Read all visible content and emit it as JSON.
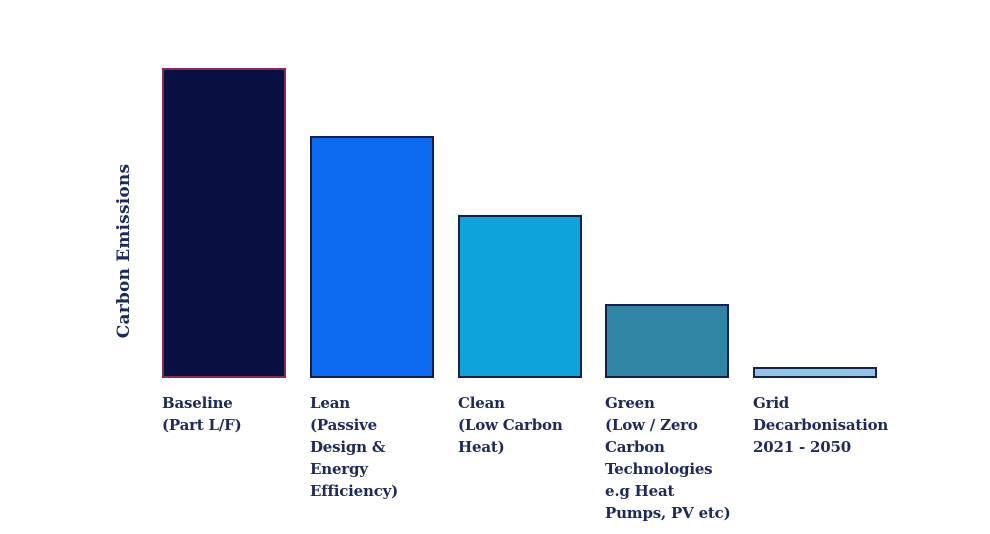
{
  "chart": {
    "y_axis_label": "Carbon Emissions",
    "text_color": "#1C2A5E",
    "background": "#FFFFFF",
    "bars": [
      {
        "id": "baseline",
        "label": "Baseline\n(Part L/F)",
        "value": 100,
        "fill": "#081041",
        "border": "#8B2A4A"
      },
      {
        "id": "lean",
        "label": "Lean\n(Passive\nDesign &\nEnergy\nEfficiency)",
        "value": 78,
        "fill": "#0B6AEF",
        "border": "#16204E"
      },
      {
        "id": "clean",
        "label": "Clean\n(Low Carbon\nHeat)",
        "value": 52.5,
        "fill": "#0FA3DB",
        "border": "#16204E"
      },
      {
        "id": "green",
        "label": "Green\n(Low / Zero\nCarbon\nTechnologies\ne.g Heat\nPumps, PV etc)",
        "value": 24,
        "fill": "#3085A4",
        "border": "#16204E"
      },
      {
        "id": "grid-decarbonisation",
        "label": "Grid\nDecarbonisation\n2021 - 2050",
        "value": 3.5,
        "fill": "#92C4E6",
        "border": "#16204E"
      }
    ]
  },
  "chart_data": {
    "type": "bar",
    "title": "",
    "xlabel": "",
    "ylabel": "Carbon Emissions",
    "categories": [
      "Baseline (Part L/F)",
      "Lean (Passive Design & Energy Efficiency)",
      "Clean (Low Carbon Heat)",
      "Green (Low / Zero Carbon Technologies e.g Heat Pumps, PV etc)",
      "Grid Decarbonisation 2021 - 2050"
    ],
    "values": [
      100,
      78,
      52.5,
      24,
      3.5
    ],
    "values_note": "No numeric y-axis shown; values estimated relative to Baseline = 100",
    "ylim": [
      0,
      100
    ],
    "grid": false,
    "legend": false,
    "bar_colors": [
      "#081041",
      "#0B6AEF",
      "#0FA3DB",
      "#3085A4",
      "#92C4E6"
    ],
    "bar_border_colors": [
      "#8B2A4A",
      "#16204E",
      "#16204E",
      "#16204E",
      "#16204E"
    ]
  }
}
